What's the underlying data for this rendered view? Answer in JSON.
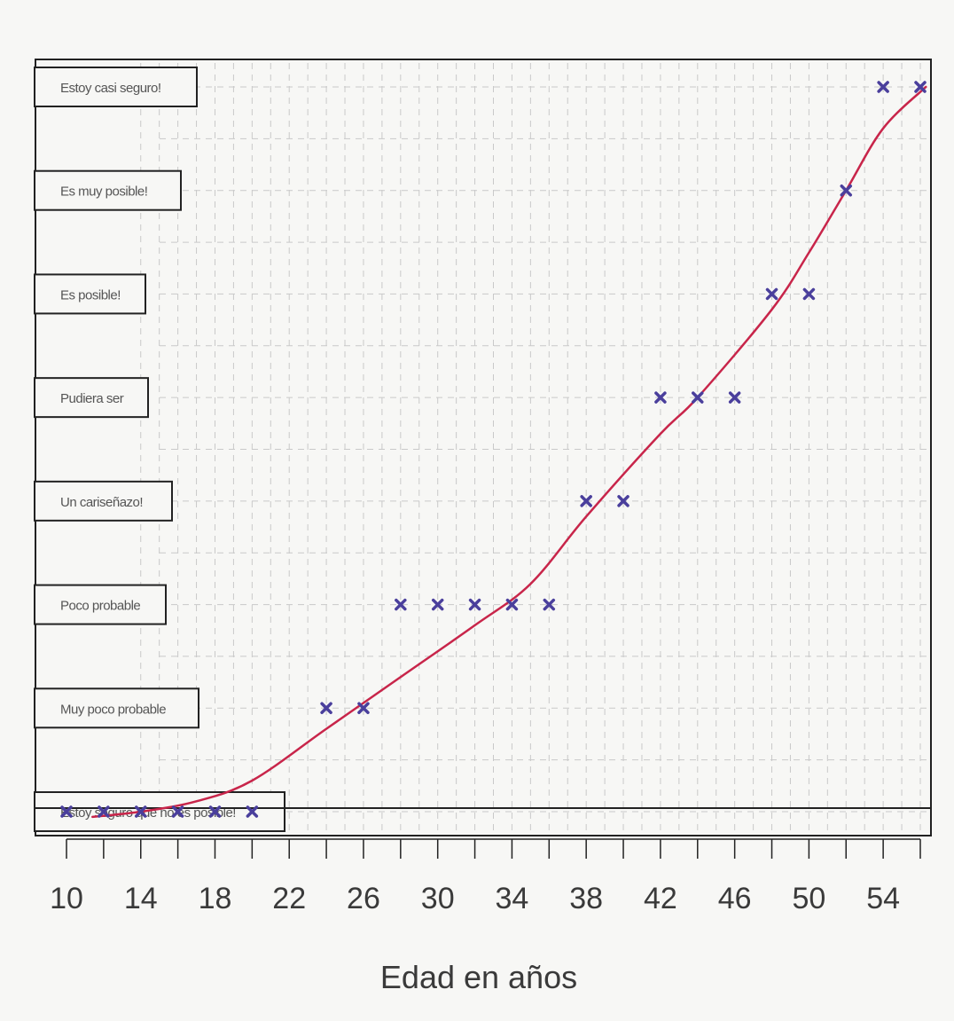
{
  "chart_data": {
    "type": "scatter",
    "title": "",
    "xlabel": "Edad en años",
    "ylabel": "",
    "x_ticks": [
      10,
      14,
      18,
      22,
      26,
      30,
      34,
      38,
      42,
      46,
      50,
      54
    ],
    "xlim": [
      8,
      57
    ],
    "ylim": [
      0.6,
      8.2
    ],
    "y_categories": [
      "Estoy seguro que no es posible!",
      "Muy poco probable",
      "Poco probable",
      "Un cariseñazo!",
      "Pudiera ser",
      "Es posible!",
      "Es muy posible!",
      "Estoy casi seguro!"
    ],
    "grid": true,
    "series": [
      {
        "type": "scatter",
        "marker": "x",
        "color": "#4a3f9c",
        "points": [
          {
            "x": 10,
            "y": 1
          },
          {
            "x": 12,
            "y": 1
          },
          {
            "x": 14,
            "y": 1
          },
          {
            "x": 16,
            "y": 1
          },
          {
            "x": 18,
            "y": 1
          },
          {
            "x": 20,
            "y": 1
          },
          {
            "x": 24,
            "y": 2
          },
          {
            "x": 26,
            "y": 2
          },
          {
            "x": 28,
            "y": 3
          },
          {
            "x": 30,
            "y": 3
          },
          {
            "x": 32,
            "y": 3
          },
          {
            "x": 34,
            "y": 3
          },
          {
            "x": 36,
            "y": 3
          },
          {
            "x": 38,
            "y": 4
          },
          {
            "x": 40,
            "y": 4
          },
          {
            "x": 42,
            "y": 5
          },
          {
            "x": 44,
            "y": 5
          },
          {
            "x": 46,
            "y": 5
          },
          {
            "x": 48,
            "y": 6
          },
          {
            "x": 50,
            "y": 6
          },
          {
            "x": 52,
            "y": 7
          },
          {
            "x": 54,
            "y": 8
          },
          {
            "x": 56,
            "y": 8
          }
        ]
      },
      {
        "type": "line",
        "color": "#c8254a",
        "points": [
          {
            "x": 11.4,
            "y": 0.95
          },
          {
            "x": 14,
            "y": 1.0
          },
          {
            "x": 17,
            "y": 1.1
          },
          {
            "x": 20,
            "y": 1.3
          },
          {
            "x": 24,
            "y": 1.8
          },
          {
            "x": 28,
            "y": 2.3
          },
          {
            "x": 32,
            "y": 2.8
          },
          {
            "x": 35,
            "y": 3.2
          },
          {
            "x": 38,
            "y": 3.85
          },
          {
            "x": 42,
            "y": 4.65
          },
          {
            "x": 44,
            "y": 5.0
          },
          {
            "x": 48,
            "y": 5.85
          },
          {
            "x": 50,
            "y": 6.4
          },
          {
            "x": 52,
            "y": 7.0
          },
          {
            "x": 54,
            "y": 7.6
          },
          {
            "x": 56.3,
            "y": 8.0
          }
        ]
      }
    ]
  }
}
